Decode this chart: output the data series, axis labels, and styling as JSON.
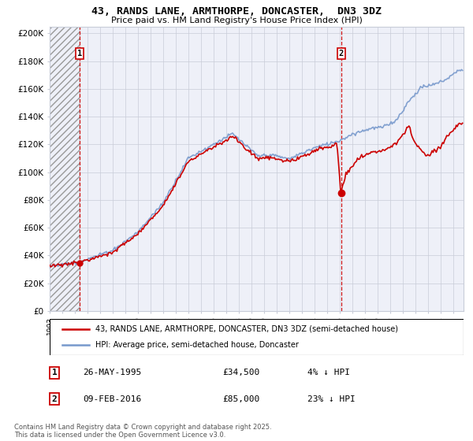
{
  "title": "43, RANDS LANE, ARMTHORPE, DONCASTER,  DN3 3DZ",
  "subtitle": "Price paid vs. HM Land Registry's House Price Index (HPI)",
  "xlim_start": 1993.0,
  "xlim_end": 2025.83,
  "ylim": [
    0,
    205000
  ],
  "yticks": [
    0,
    20000,
    40000,
    60000,
    80000,
    100000,
    120000,
    140000,
    160000,
    180000,
    200000
  ],
  "ytick_labels": [
    "£0",
    "£20K",
    "£40K",
    "£60K",
    "£80K",
    "£100K",
    "£120K",
    "£140K",
    "£160K",
    "£180K",
    "£200K"
  ],
  "transaction1_date": 1995.39,
  "transaction1_price": 34500,
  "transaction1_label": "1",
  "transaction1_annotation": "26-MAY-1995",
  "transaction1_price_str": "£34,500",
  "transaction1_hpi": "4% ↓ HPI",
  "transaction2_date": 2016.11,
  "transaction2_price": 85000,
  "transaction2_label": "2",
  "transaction2_annotation": "09-FEB-2016",
  "transaction2_price_str": "£85,000",
  "transaction2_hpi": "23% ↓ HPI",
  "hpi_color": "#7799cc",
  "price_color": "#cc0000",
  "plot_bg_color": "#eef0f8",
  "background_color": "#ffffff",
  "grid_color": "#c8ccd8",
  "legend1": "43, RANDS LANE, ARMTHORPE, DONCASTER, DN3 3DZ (semi-detached house)",
  "legend2": "HPI: Average price, semi-detached house, Doncaster",
  "copyright": "Contains HM Land Registry data © Crown copyright and database right 2025.\nThis data is licensed under the Open Government Licence v3.0."
}
